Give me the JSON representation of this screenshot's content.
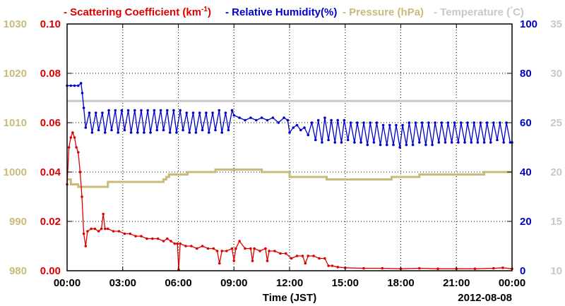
{
  "chart_data": {
    "type": "line",
    "legend": [
      {
        "text": "- Scattering Coefficient (km",
        "sup": "-1",
        "tail": ")",
        "color": "#dd0000"
      },
      {
        "text": "- Relative Humidity(%)",
        "color": "#0000cc"
      },
      {
        "text": "- Pressure (hPa)",
        "color": "#c8bb7a"
      },
      {
        "text": "- Temperature (",
        "sup": "°",
        "tail": "C)",
        "color": "#c8c8c8"
      }
    ],
    "xlabel": "Time (JST)",
    "date_label": "2012-08-08",
    "x_ticks": [
      "00:00",
      "03:00",
      "06:00",
      "09:00",
      "12:00",
      "15:00",
      "18:00",
      "21:00",
      "00:00"
    ],
    "xlim_hours": [
      0,
      24
    ],
    "grid": true,
    "axes": {
      "scattering": {
        "ticks": [
          "0.00",
          "0.02",
          "0.04",
          "0.06",
          "0.08",
          "0.10"
        ],
        "ylim": [
          0,
          0.1
        ],
        "color": "#dd0000"
      },
      "pressure": {
        "ticks": [
          "980",
          "990",
          "1000",
          "1010",
          "1020",
          "1030"
        ],
        "ylim": [
          980,
          1030
        ],
        "color": "#c8bb7a"
      },
      "humidity": {
        "ticks": [
          "0",
          "20",
          "40",
          "60",
          "80",
          "100"
        ],
        "ylim": [
          0,
          100
        ],
        "color": "#0000cc"
      },
      "temperature": {
        "ticks": [
          "10",
          "15",
          "20",
          "25",
          "30",
          "35"
        ],
        "ylim": [
          10,
          35
        ],
        "color": "#c8c8c8"
      }
    },
    "series": [
      {
        "name": "Scattering Coefficient",
        "axis": "scattering",
        "color": "#dd0000",
        "markers": true,
        "x": [
          0,
          0.1,
          0.2,
          0.3,
          0.4,
          0.5,
          0.6,
          0.7,
          0.8,
          0.9,
          1.0,
          1.1,
          1.3,
          1.5,
          1.7,
          1.85,
          1.95,
          2.05,
          2.2,
          2.5,
          2.8,
          3.1,
          3.4,
          3.7,
          4.0,
          4.3,
          4.6,
          4.9,
          5.2,
          5.4,
          5.6,
          5.8,
          5.95,
          6.02,
          6.1,
          6.4,
          6.7,
          7.0,
          7.3,
          7.6,
          7.9,
          8.1,
          8.22,
          8.35,
          8.6,
          8.9,
          9.0,
          9.1,
          9.3,
          9.6,
          9.9,
          10.0,
          10.1,
          10.4,
          10.7,
          10.8,
          10.9,
          11.2,
          11.5,
          11.8,
          12.1,
          12.4,
          12.7,
          12.85,
          13.0,
          13.3,
          13.6,
          13.9,
          14.1,
          14.3,
          14.6,
          15.0,
          16.0,
          17.0,
          18.0,
          19.0,
          20.0,
          21.0,
          22.0,
          23.0,
          23.5,
          24
        ],
        "y": [
          0.035,
          0.05,
          0.054,
          0.056,
          0.054,
          0.05,
          0.048,
          0.04,
          0.03,
          0.015,
          0.01,
          0.016,
          0.017,
          0.017,
          0.016,
          0.017,
          0.023,
          0.017,
          0.017,
          0.016,
          0.016,
          0.015,
          0.015,
          0.014,
          0.014,
          0.013,
          0.013,
          0.013,
          0.012,
          0.013,
          0.012,
          0.011,
          0.011,
          0.0005,
          0.011,
          0.01,
          0.01,
          0.009,
          0.01,
          0.009,
          0.009,
          0.008,
          0.003,
          0.008,
          0.008,
          0.009,
          0.004,
          0.009,
          0.012,
          0.009,
          0.009,
          0.004,
          0.009,
          0.008,
          0.009,
          0.004,
          0.008,
          0.008,
          0.007,
          0.007,
          0.005,
          0.006,
          0.006,
          0.003,
          0.006,
          0.006,
          0.005,
          0.005,
          0.002,
          0.002,
          0.0015,
          0.0012,
          0.001,
          0.001,
          0.0008,
          0.001,
          0.0008,
          0.0008,
          0.0008,
          0.001,
          0.0012,
          0.0008
        ]
      },
      {
        "name": "Relative Humidity",
        "axis": "humidity",
        "color": "#0000cc",
        "markers": true,
        "x": [
          0,
          0.2,
          0.4,
          0.6,
          0.75,
          0.82,
          0.9,
          1.0,
          1.2,
          1.35,
          1.55,
          1.7,
          1.9,
          2.05,
          2.25,
          2.4,
          2.6,
          2.75,
          2.95,
          3.1,
          3.3,
          3.45,
          3.65,
          3.8,
          4.0,
          4.15,
          4.35,
          4.5,
          4.7,
          4.85,
          5.05,
          5.2,
          5.4,
          5.55,
          5.75,
          5.9,
          6.1,
          6.25,
          6.45,
          6.6,
          6.8,
          6.95,
          7.15,
          7.3,
          7.5,
          7.65,
          7.85,
          8.0,
          8.2,
          8.35,
          8.55,
          8.7,
          8.9,
          9.0,
          9.3,
          9.6,
          9.9,
          10.2,
          10.5,
          10.8,
          11.1,
          11.4,
          11.7,
          11.9,
          12.0,
          12.2,
          12.4,
          12.6,
          12.8,
          13.0,
          13.2,
          13.4,
          13.55,
          13.75,
          13.9,
          14.1,
          14.25,
          14.45,
          14.6,
          14.8,
          14.95,
          15.15,
          15.3,
          15.5,
          15.65,
          15.85,
          16.0,
          16.2,
          16.35,
          16.55,
          16.7,
          16.9,
          17.05,
          17.25,
          17.4,
          17.6,
          17.75,
          17.95,
          18.1,
          18.3,
          18.45,
          18.65,
          18.8,
          19.0,
          19.15,
          19.35,
          19.5,
          19.7,
          19.85,
          20.05,
          20.2,
          20.4,
          20.55,
          20.75,
          20.9,
          21.1,
          21.25,
          21.45,
          21.6,
          21.8,
          21.95,
          22.15,
          22.3,
          22.5,
          22.65,
          22.85,
          23.0,
          23.2,
          23.35,
          23.55,
          23.7,
          23.9,
          24.0
        ],
        "y": [
          75,
          75,
          75,
          75,
          76,
          72,
          66,
          58,
          64,
          56,
          64,
          57,
          64,
          56,
          65,
          57,
          65,
          56,
          65,
          57,
          65,
          56,
          65,
          56,
          65,
          56,
          65,
          56,
          65,
          57,
          65,
          57,
          65,
          56,
          65,
          56,
          65,
          57,
          64,
          56,
          64,
          56,
          64,
          57,
          64,
          56,
          64,
          57,
          65,
          56,
          64,
          57,
          65,
          63,
          62,
          61,
          62,
          61,
          62,
          61,
          62,
          60,
          62,
          61,
          56,
          58,
          59,
          57,
          58,
          55,
          60,
          53,
          61,
          52,
          62,
          53,
          61,
          52,
          61,
          52,
          61,
          53,
          60,
          52,
          60,
          52,
          60,
          51,
          60,
          52,
          60,
          51,
          59,
          51,
          59,
          51,
          59,
          50,
          59,
          51,
          60,
          51,
          60,
          52,
          60,
          51,
          60,
          51,
          60,
          52,
          60,
          52,
          60,
          52,
          60,
          52,
          60,
          52,
          60,
          52,
          60,
          52,
          60,
          52,
          60,
          52,
          60,
          53,
          60,
          52,
          60,
          52,
          52
        ]
      },
      {
        "name": "Pressure",
        "axis": "pressure",
        "color": "#c8bb7a",
        "markers": false,
        "x": [
          0,
          0.2,
          0.2,
          0.6,
          0.6,
          2.2,
          2.2,
          5.2,
          5.2,
          5.35,
          5.35,
          5.5,
          5.5,
          6.5,
          6.5,
          8.0,
          8.0,
          10.5,
          10.5,
          12.0,
          12.0,
          14.0,
          14.0,
          17.5,
          17.5,
          19.0,
          19.0,
          22.5,
          22.5,
          24.0
        ],
        "y": [
          998.5,
          998.5,
          997.5,
          997.5,
          997,
          997,
          998,
          998,
          998.5,
          998.5,
          999,
          999,
          999.5,
          999.5,
          1000,
          1000,
          1000.5,
          1000.5,
          1000,
          1000,
          999,
          999,
          998.5,
          998.5,
          999,
          999,
          999.5,
          999.5,
          1000,
          1000
        ]
      },
      {
        "name": "Temperature",
        "axis": "temperature",
        "color": "#c8c8c8",
        "markers": false,
        "x": [
          0,
          24
        ],
        "y": [
          27.2,
          27.2
        ]
      }
    ]
  }
}
